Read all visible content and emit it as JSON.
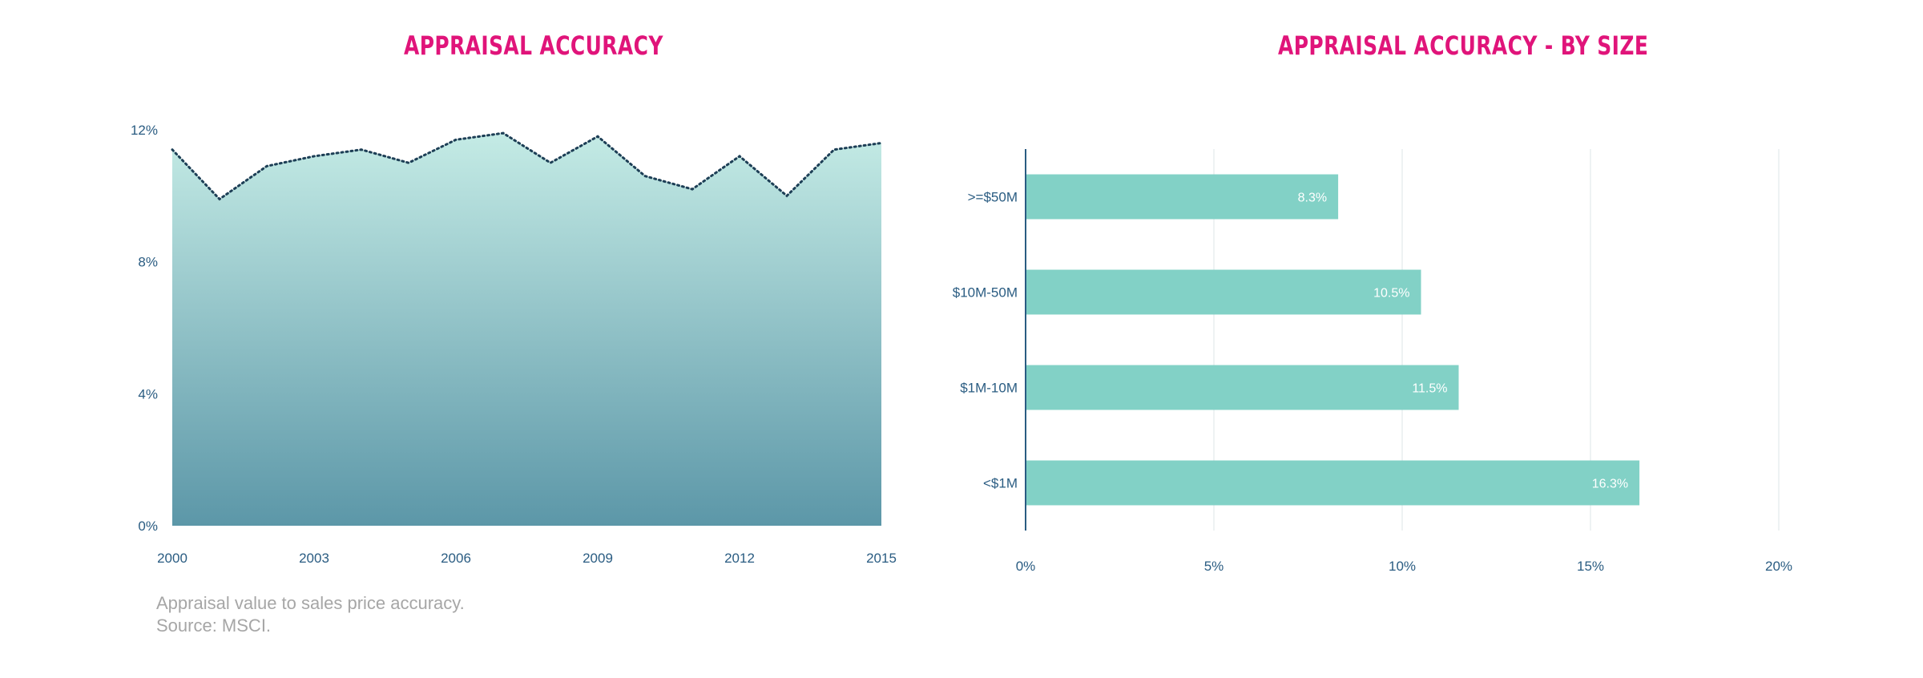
{
  "colors": {
    "title": "#e0147a",
    "axis_text": "#2a5c82",
    "area_top": "#c4ebe5",
    "area_bottom": "#5c97a8",
    "line": "#1d3f56",
    "bar": "#82d1c6",
    "bar_label": "#ffffff",
    "grid": "#e9edef",
    "axis_line": "#2a5c82",
    "note": "#a6a6a6"
  },
  "charts": {
    "left_title": "APPRAISAL  ACCURACY",
    "right_title": "APPRAISAL  ACCURACY - BY SIZE"
  },
  "notes": {
    "line1": "Appraisal value to sales price accuracy.",
    "line2": "Source: MSCI."
  },
  "chart_data": [
    {
      "type": "area",
      "title": "APPRAISAL  ACCURACY",
      "x": [
        2000,
        2001,
        2002,
        2003,
        2004,
        2005,
        2006,
        2007,
        2008,
        2009,
        2010,
        2011,
        2012,
        2013,
        2014,
        2015
      ],
      "values": [
        11.4,
        9.9,
        10.9,
        11.2,
        11.4,
        11.0,
        11.7,
        11.9,
        11.0,
        11.8,
        10.6,
        10.2,
        11.2,
        10.0,
        11.4,
        11.6
      ],
      "xticks": [
        "2000",
        "2003",
        "2006",
        "2009",
        "2012",
        "2015"
      ],
      "yticks": [
        "0%",
        "4%",
        "8%",
        "12%"
      ],
      "ylim": [
        0,
        12
      ],
      "xlim": [
        2000,
        2015
      ],
      "grid": false,
      "legend": "none"
    },
    {
      "type": "bar",
      "orientation": "horizontal",
      "title": "APPRAISAL  ACCURACY - BY SIZE",
      "categories": [
        ">=$50M",
        "$10M-50M",
        "$1M-10M",
        "<$1M"
      ],
      "values": [
        8.3,
        10.5,
        11.5,
        16.3
      ],
      "data_labels": [
        "8.3%",
        "10.5%",
        "11.5%",
        "16.3%"
      ],
      "xticks": [
        "0%",
        "5%",
        "10%",
        "15%",
        "20%"
      ],
      "xlim": [
        0,
        20
      ],
      "grid": true,
      "legend": "none"
    }
  ]
}
